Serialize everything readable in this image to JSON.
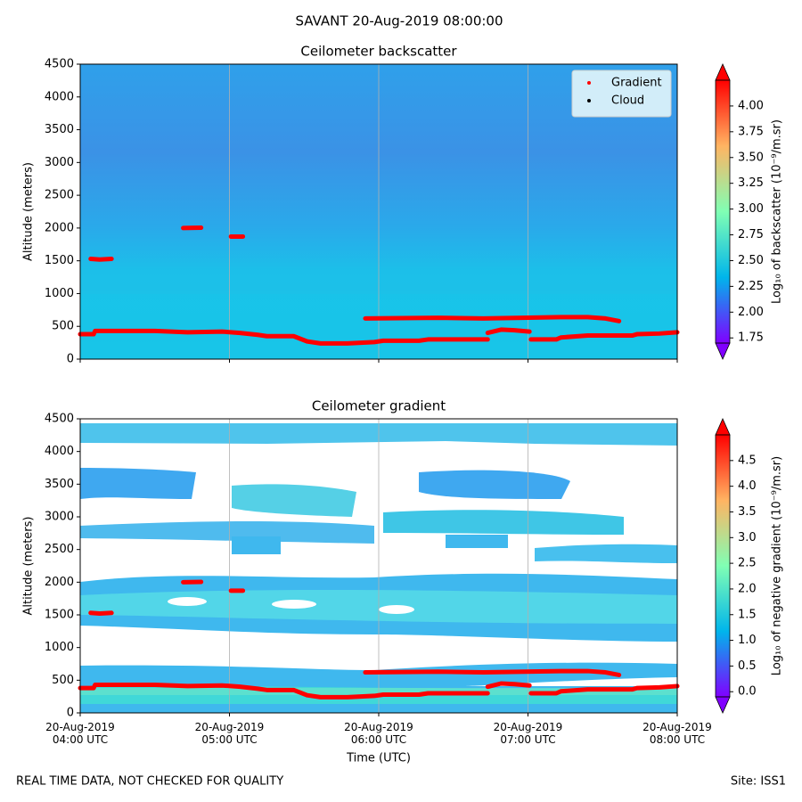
{
  "title": "SAVANT 20-Aug-2019 08:00:00",
  "footer_left": "REAL TIME DATA, NOT CHECKED FOR QUALITY",
  "footer_right": "Site: ISS1",
  "chart_data": [
    {
      "type": "scatter",
      "title": "Ceilometer backscatter",
      "ylabel": "Altitude (meters)",
      "xlim": [
        4,
        8
      ],
      "ylim": [
        0,
        4500
      ],
      "xticks": [
        {
          "value": 4,
          "label": ""
        },
        {
          "value": 5,
          "label": ""
        },
        {
          "value": 6,
          "label": ""
        },
        {
          "value": 7,
          "label": ""
        },
        {
          "value": 8,
          "label": ""
        }
      ],
      "yticks": [
        0,
        500,
        1000,
        1500,
        2000,
        2500,
        3000,
        3500,
        4000,
        4500
      ],
      "grid": "x",
      "legend": "upper right",
      "series": [
        {
          "name": "Gradient",
          "color": "#ff0000",
          "x": [
            4.07,
            4.13,
            4.21,
            null,
            4.69,
            4.81,
            null,
            5.01,
            5.09,
            null,
            4.0,
            4.09,
            4.1,
            4.5,
            4.72,
            4.95,
            5.07,
            5.19,
            5.25,
            5.43,
            5.52,
            5.61,
            5.79,
            5.97,
            6.03,
            6.27,
            6.33,
            6.73,
            null,
            6.73,
            6.82,
            6.91,
            7.01,
            null,
            7.02,
            7.19,
            7.22,
            7.34,
            7.4,
            7.7,
            7.73,
            7.88,
            8.0,
            null,
            5.91,
            6.4,
            6.7,
            7.22,
            7.4,
            7.52,
            7.61
          ],
          "values": [
            1530,
            1520,
            1530,
            null,
            2000,
            2005,
            null,
            1870,
            1870,
            null,
            380,
            380,
            430,
            430,
            410,
            420,
            400,
            370,
            350,
            350,
            270,
            240,
            240,
            260,
            280,
            280,
            300,
            300,
            null,
            400,
            450,
            440,
            420,
            null,
            300,
            300,
            330,
            350,
            360,
            360,
            380,
            390,
            410,
            null,
            620,
            630,
            620,
            640,
            640,
            620,
            580
          ]
        },
        {
          "name": "Cloud",
          "color": "#000000",
          "x": [],
          "values": []
        }
      ],
      "colorbar": {
        "label": "Log₁₀ of backscatter (10⁻⁹/m.sr)",
        "lim": [
          1.7,
          4.25
        ],
        "ticks": [
          {
            "value": 1.75,
            "label": "1.75"
          },
          {
            "value": 2,
            "label": "2.00"
          },
          {
            "value": 2.25,
            "label": "2.25"
          },
          {
            "value": 2.5,
            "label": "2.50"
          },
          {
            "value": 2.75,
            "label": "2.75"
          },
          {
            "value": 3,
            "label": "3.00"
          },
          {
            "value": 3.25,
            "label": "3.25"
          },
          {
            "value": 3.5,
            "label": "3.50"
          },
          {
            "value": 3.75,
            "label": "3.75"
          },
          {
            "value": 4,
            "label": "4.00"
          }
        ]
      }
    },
    {
      "type": "scatter",
      "title": "Ceilometer gradient",
      "ylabel": "Altitude (meters)",
      "xlabel": "Time (UTC)",
      "xlim": [
        4,
        8
      ],
      "ylim": [
        0,
        4500
      ],
      "xticks": [
        {
          "value": 4,
          "label": "20-Aug-2019\n04:00 UTC"
        },
        {
          "value": 5,
          "label": "20-Aug-2019\n05:00 UTC"
        },
        {
          "value": 6,
          "label": "20-Aug-2019\n06:00 UTC"
        },
        {
          "value": 7,
          "label": "20-Aug-2019\n07:00 UTC"
        },
        {
          "value": 8,
          "label": "20-Aug-2019\n08:00 UTC"
        }
      ],
      "yticks": [
        0,
        500,
        1000,
        1500,
        2000,
        2500,
        3000,
        3500,
        4000,
        4500
      ],
      "grid": "x",
      "series": [
        {
          "name": "Gradient",
          "color": "#ff0000",
          "x": [
            4.07,
            4.13,
            4.21,
            null,
            4.69,
            4.81,
            null,
            5.01,
            5.09,
            null,
            4.0,
            4.09,
            4.1,
            4.5,
            4.72,
            4.95,
            5.07,
            5.19,
            5.25,
            5.43,
            5.52,
            5.61,
            5.79,
            5.97,
            6.03,
            6.27,
            6.33,
            6.73,
            null,
            6.73,
            6.82,
            6.91,
            7.01,
            null,
            7.02,
            7.19,
            7.22,
            7.34,
            7.4,
            7.7,
            7.73,
            7.88,
            8.0,
            null,
            5.91,
            6.4,
            6.7,
            7.22,
            7.4,
            7.52,
            7.61
          ],
          "values": [
            1530,
            1520,
            1530,
            null,
            2000,
            2005,
            null,
            1870,
            1870,
            null,
            380,
            380,
            430,
            430,
            410,
            420,
            400,
            370,
            350,
            350,
            270,
            240,
            240,
            260,
            280,
            280,
            300,
            300,
            null,
            400,
            450,
            440,
            420,
            null,
            300,
            300,
            330,
            350,
            360,
            360,
            380,
            390,
            410,
            null,
            620,
            630,
            620,
            640,
            640,
            620,
            580
          ]
        }
      ],
      "colorbar": {
        "label": "Log₁₀ of negative gradient (10⁻⁹/m.sr)",
        "lim": [
          -0.1,
          5.0
        ],
        "ticks": [
          {
            "value": 0,
            "label": "0.0"
          },
          {
            "value": 0.5,
            "label": "0.5"
          },
          {
            "value": 1,
            "label": "1.0"
          },
          {
            "value": 1.5,
            "label": "1.5"
          },
          {
            "value": 2,
            "label": "2.0"
          },
          {
            "value": 2.5,
            "label": "2.5"
          },
          {
            "value": 3,
            "label": "3.0"
          },
          {
            "value": 3.5,
            "label": "3.5"
          },
          {
            "value": 4,
            "label": "4.0"
          },
          {
            "value": 4.5,
            "label": "4.5"
          }
        ]
      }
    }
  ]
}
